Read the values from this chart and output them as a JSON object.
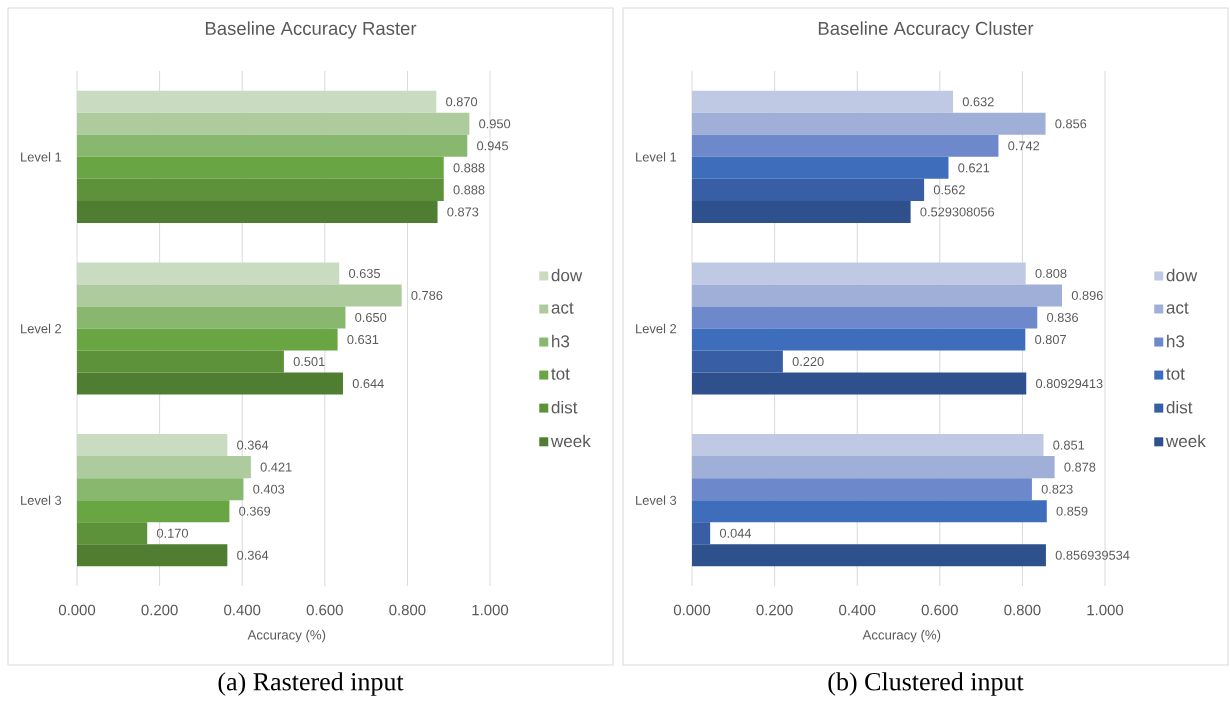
{
  "chart_data": [
    {
      "type": "bar",
      "orientation": "horizontal",
      "title": "Baseline Accuracy Raster",
      "xlabel": "Accuracy (%)",
      "categories": [
        "Level 1",
        "Level 2",
        "Level 3"
      ],
      "series": [
        {
          "name": "dow",
          "color": "#c9dcc1",
          "values": [
            0.87,
            0.635,
            0.364
          ],
          "value_labels": [
            "0.870",
            "0.635",
            "0.364"
          ]
        },
        {
          "name": "act",
          "color": "#aecb9e",
          "values": [
            0.95,
            0.786,
            0.421
          ],
          "value_labels": [
            "0.950",
            "0.786",
            "0.421"
          ]
        },
        {
          "name": "h3",
          "color": "#88b86e",
          "values": [
            0.945,
            0.65,
            0.403
          ],
          "value_labels": [
            "0.945",
            "0.650",
            "0.403"
          ]
        },
        {
          "name": "tot",
          "color": "#6aa544",
          "values": [
            0.888,
            0.631,
            0.369
          ],
          "value_labels": [
            "0.888",
            "0.631",
            "0.369"
          ]
        },
        {
          "name": "dist",
          "color": "#5e923a",
          "values": [
            0.888,
            0.501,
            0.17
          ],
          "value_labels": [
            "0.888",
            "0.501",
            "0.170"
          ]
        },
        {
          "name": "week",
          "color": "#4f7e32",
          "values": [
            0.873,
            0.644,
            0.364
          ],
          "value_labels": [
            "0.873",
            "0.644",
            "0.364"
          ]
        }
      ],
      "xlim": [
        0,
        1
      ],
      "xticks": [
        {
          "value": 0,
          "label": "0.000"
        },
        {
          "value": 0.2,
          "label": "0.200"
        },
        {
          "value": 0.4,
          "label": "0.400"
        },
        {
          "value": 0.6,
          "label": "0.600"
        },
        {
          "value": 0.8,
          "label": "0.800"
        },
        {
          "value": 1,
          "label": "1.000"
        }
      ],
      "grid": "x",
      "legend": "right",
      "annotations": [
        "(a) Rastered input"
      ]
    },
    {
      "type": "bar",
      "orientation": "horizontal",
      "title": "Baseline Accuracy Cluster",
      "xlabel": "Accuracy (%)",
      "categories": [
        "Level 1",
        "Level 2",
        "Level 3"
      ],
      "series": [
        {
          "name": "dow",
          "color": "#bfc9e4",
          "values": [
            0.632,
            0.808,
            0.851
          ],
          "value_labels": [
            "0.632",
            "0.808",
            "0.851"
          ]
        },
        {
          "name": "act",
          "color": "#9fafd8",
          "values": [
            0.856,
            0.896,
            0.878
          ],
          "value_labels": [
            "0.856",
            "0.896",
            "0.878"
          ]
        },
        {
          "name": "h3",
          "color": "#6d88cb",
          "values": [
            0.742,
            0.836,
            0.823
          ],
          "value_labels": [
            "0.742",
            "0.836",
            "0.823"
          ]
        },
        {
          "name": "tot",
          "color": "#3e6dbb",
          "values": [
            0.621,
            0.807,
            0.859
          ],
          "value_labels": [
            "0.621",
            "0.807",
            "0.859"
          ]
        },
        {
          "name": "dist",
          "color": "#385ea6",
          "values": [
            0.562,
            0.22,
            0.044
          ],
          "value_labels": [
            "0.562",
            "0.220",
            "0.044"
          ]
        },
        {
          "name": "week",
          "color": "#2e508c",
          "values": [
            0.529308056,
            0.80929413,
            0.856939534
          ],
          "value_labels": [
            "0.529308056",
            "0.80929413",
            "0.856939534"
          ]
        }
      ],
      "xlim": [
        0,
        1
      ],
      "xticks": [
        {
          "value": 0,
          "label": "0.000"
        },
        {
          "value": 0.2,
          "label": "0.200"
        },
        {
          "value": 0.4,
          "label": "0.400"
        },
        {
          "value": 0.6,
          "label": "0.600"
        },
        {
          "value": 0.8,
          "label": "0.800"
        },
        {
          "value": 1,
          "label": "1.000"
        }
      ],
      "grid": "x",
      "legend": "right",
      "annotations": [
        "(b) Clustered input"
      ]
    }
  ]
}
